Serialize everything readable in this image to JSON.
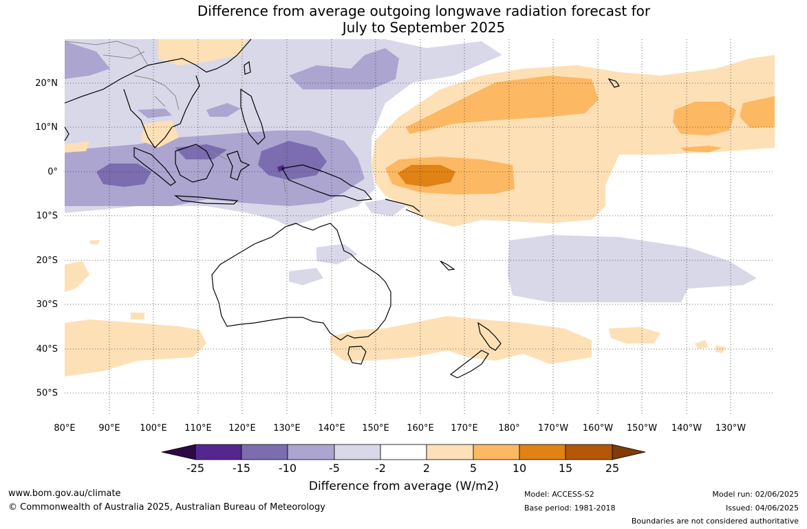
{
  "title": {
    "line1": "Difference from average outgoing longwave radiation forecast for",
    "line2": "July to September 2025"
  },
  "map": {
    "latitude_labels": [
      "20°N",
      "10°N",
      "0°",
      "10°S",
      "20°S",
      "30°S",
      "40°S",
      "50°S"
    ],
    "longitude_labels": [
      "80°E",
      "90°E",
      "100°E",
      "110°E",
      "120°E",
      "130°E",
      "140°E",
      "150°E",
      "160°E",
      "170°E",
      "180°",
      "170°W",
      "160°W",
      "150°W",
      "140°W",
      "130°W"
    ]
  },
  "colorbar": {
    "title": "Difference from average (W/m2)",
    "tick_labels": [
      "-25",
      "-15",
      "-10",
      "-5",
      "-2",
      "2",
      "5",
      "10",
      "15",
      "25"
    ],
    "colors": {
      "below_min": "#2d0a45",
      "bin_-25_-15": "#54278f",
      "bin_-15_-10": "#7b6db0",
      "bin_-10_-5": "#aba5cf",
      "bin_-5_-2": "#d8d8e9",
      "bin_-2_2": "#ffffff",
      "bin_2_5": "#fee0b6",
      "bin_5_10": "#fdb863",
      "bin_10_15": "#e08214",
      "bin_15_25": "#b35806",
      "above_max": "#7f3b08"
    }
  },
  "footer": {
    "website": "www.bom.gov.au/climate",
    "copyright": "© Commonwealth of Australia 2025, Australian Bureau of Meteorology",
    "model": "Model: ACCESS-S2",
    "base_period": "Base period: 1981-2018",
    "model_run": "Model run: 02/06/2025",
    "issued": "Issued: 04/06/2025",
    "disclaimer": "Boundaries are not considered authoritative"
  }
}
